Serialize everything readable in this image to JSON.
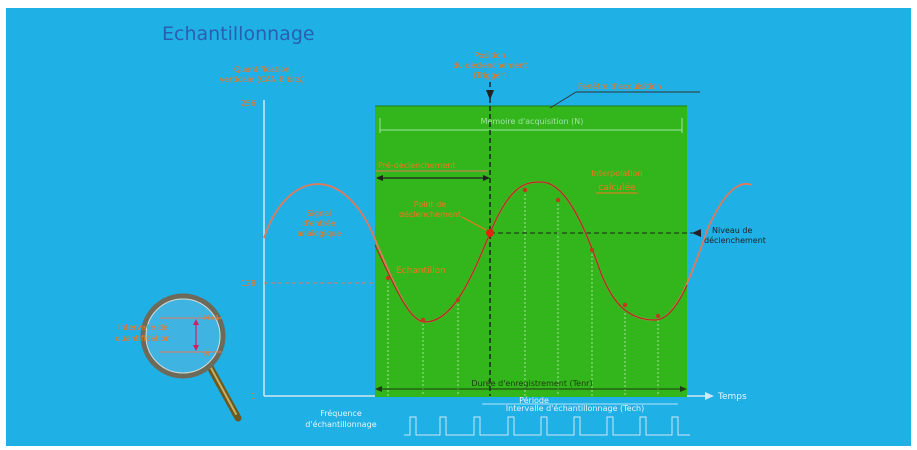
{
  "title": "Echantillonnage",
  "colors": {
    "background": "#1fb0e6",
    "acquisition_window": "#33b51c",
    "signal": "#e07a5a",
    "label_orange": "#f4761e",
    "label_white": "#e8f5ff",
    "axis": "#cfe8f5",
    "dark_line": "#222222"
  },
  "axis": {
    "y_title_line1": "Quantification",
    "y_title_line2": "verticale (CAN 8 bits)",
    "y_max": "256",
    "y_mid": "128",
    "y_min": "1",
    "x_label": "Temps"
  },
  "trigger": {
    "label_line1": "Position",
    "label_line2": "du déclenchement",
    "label_line3": "(Trigger)"
  },
  "window": {
    "label": "Fenêtre d'acquisition",
    "inner_label": "Mémoire d'acquisition (N)",
    "pretrigger_label": "Pré-déclenchement",
    "duration_label": "Durée d'enregistrement (Tenr)"
  },
  "annotations": {
    "analog_signal_line1": "Signal",
    "analog_signal_line2": "d'entrée",
    "analog_signal_line3": "analogique",
    "sample_label": "Echantillon",
    "trigger_point_line1": "Point de",
    "trigger_point_line2": "déclenchement",
    "interp_line1": "Interpolation",
    "interp_line2": "calculée",
    "trigger_level_line1": "Niveau de",
    "trigger_level_line2": "déclenchement"
  },
  "clock": {
    "label_line1": "Fréquence",
    "label_line2": "d'échantillonnage",
    "interval_line1": "Période",
    "interval_line2": "Intervalle d'échantillonnage (Tech)"
  },
  "magnifier": {
    "upper": "N+1",
    "lower": "N",
    "label_line1": "Intervalle de",
    "label_line2": "quantification"
  }
}
